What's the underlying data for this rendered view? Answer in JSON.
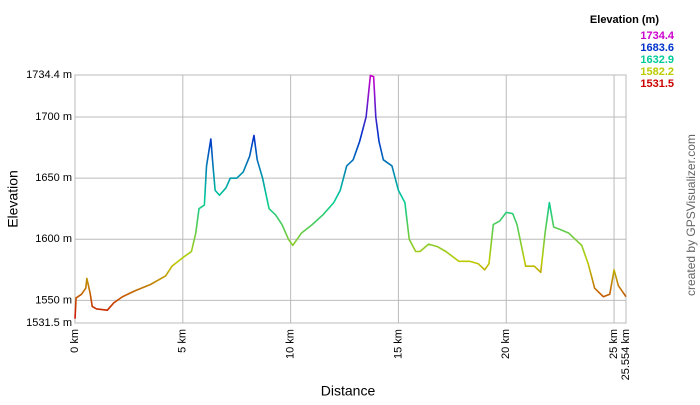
{
  "chart_data": {
    "type": "line",
    "x_label": "Distance",
    "y_label": "Elevation",
    "credit": "created by GPSVisualizer.com",
    "grid": true,
    "color_scale": {
      "title": "Elevation (m)",
      "values": [
        1734.4,
        1683.6,
        1632.9,
        1582.2,
        1531.5
      ],
      "colors": [
        "#cc00cc",
        "#0033cc",
        "#00cc99",
        "#bbcc00",
        "#cc0000"
      ]
    },
    "xlim": [
      0,
      25.554
    ],
    "ylim": [
      1531.5,
      1734.4
    ],
    "xticks": [
      {
        "value": 0,
        "label": "0 km"
      },
      {
        "value": 5,
        "label": "5 km"
      },
      {
        "value": 10,
        "label": "10 km"
      },
      {
        "value": 15,
        "label": "15 km"
      },
      {
        "value": 20,
        "label": "20 km"
      },
      {
        "value": 25,
        "label": "25 km"
      },
      {
        "value": 25.554,
        "label": "25.554 km"
      }
    ],
    "yticks": [
      {
        "value": 1531.5,
        "label": "1531.5 m"
      },
      {
        "value": 1550,
        "label": "1550 m"
      },
      {
        "value": 1600,
        "label": "1600 m"
      },
      {
        "value": 1650,
        "label": "1650 m"
      },
      {
        "value": 1700,
        "label": "1700 m"
      },
      {
        "value": 1734.4,
        "label": "1734.4 m"
      }
    ],
    "series": [
      {
        "name": "Elevation",
        "x": [
          0,
          0.05,
          0.3,
          0.5,
          0.55,
          0.7,
          0.8,
          1.0,
          1.5,
          1.8,
          2.2,
          2.8,
          3.5,
          4.2,
          4.5,
          5.0,
          5.4,
          5.6,
          5.75,
          6.0,
          6.1,
          6.3,
          6.4,
          6.5,
          6.7,
          7.0,
          7.2,
          7.5,
          7.8,
          8.1,
          8.3,
          8.45,
          8.7,
          9.0,
          9.3,
          9.6,
          9.9,
          10.1,
          10.5,
          11.0,
          11.5,
          12.0,
          12.3,
          12.6,
          12.9,
          13.2,
          13.5,
          13.7,
          13.85,
          13.95,
          14.1,
          14.3,
          14.7,
          15.0,
          15.3,
          15.5,
          15.8,
          16.0,
          16.4,
          16.8,
          17.2,
          17.5,
          17.8,
          18.3,
          18.7,
          19.0,
          19.2,
          19.4,
          19.7,
          20.0,
          20.3,
          20.5,
          20.7,
          20.9,
          21.3,
          21.6,
          21.8,
          22.0,
          22.2,
          22.5,
          22.9,
          23.2,
          23.5,
          23.8,
          24.1,
          24.5,
          24.8,
          25.0,
          25.2,
          25.554
        ],
        "values": [
          1535,
          1552,
          1555,
          1560,
          1568,
          1556,
          1545,
          1543,
          1542,
          1548,
          1553,
          1558,
          1563,
          1570,
          1578,
          1585,
          1590,
          1605,
          1625,
          1628,
          1660,
          1682,
          1660,
          1640,
          1636,
          1642,
          1650,
          1650,
          1655,
          1668,
          1685,
          1665,
          1650,
          1625,
          1620,
          1612,
          1600,
          1595,
          1605,
          1612,
          1620,
          1630,
          1640,
          1660,
          1665,
          1680,
          1700,
          1734,
          1733,
          1700,
          1680,
          1665,
          1660,
          1640,
          1630,
          1600,
          1590,
          1590,
          1596,
          1594,
          1590,
          1586,
          1582,
          1582,
          1580,
          1575,
          1580,
          1612,
          1615,
          1622,
          1621,
          1612,
          1595,
          1578,
          1578,
          1573,
          1605,
          1630,
          1610,
          1608,
          1605,
          1600,
          1595,
          1580,
          1560,
          1553,
          1555,
          1575,
          1562,
          1553
        ]
      }
    ]
  }
}
